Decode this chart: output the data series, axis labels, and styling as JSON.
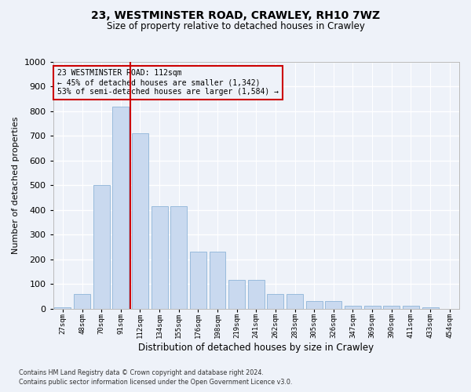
{
  "title1": "23, WESTMINSTER ROAD, CRAWLEY, RH10 7WZ",
  "title2": "Size of property relative to detached houses in Crawley",
  "xlabel": "Distribution of detached houses by size in Crawley",
  "ylabel": "Number of detached properties",
  "bar_heights": [
    5,
    60,
    500,
    820,
    710,
    415,
    415,
    230,
    230,
    115,
    115,
    60,
    60,
    32,
    32,
    10,
    10,
    10,
    10,
    5,
    0
  ],
  "bar_labels": [
    "27sqm",
    "48sqm",
    "70sqm",
    "91sqm",
    "112sqm",
    "134sqm",
    "155sqm",
    "176sqm",
    "198sqm",
    "219sqm",
    "241sqm",
    "262sqm",
    "283sqm",
    "305sqm",
    "326sqm",
    "347sqm",
    "369sqm",
    "390sqm",
    "411sqm",
    "433sqm",
    "454sqm"
  ],
  "n_bars": 21,
  "highlight_index": 4,
  "bar_color": "#c9d9ef",
  "bar_edge_color": "#8eb4d8",
  "highlight_line_color": "#cc0000",
  "annotation_box_color": "#cc0000",
  "annotation_text": "23 WESTMINSTER ROAD: 112sqm\n← 45% of detached houses are smaller (1,342)\n53% of semi-detached houses are larger (1,584) →",
  "ylim": [
    0,
    1000
  ],
  "yticks": [
    0,
    100,
    200,
    300,
    400,
    500,
    600,
    700,
    800,
    900,
    1000
  ],
  "footer1": "Contains HM Land Registry data © Crown copyright and database right 2024.",
  "footer2": "Contains public sector information licensed under the Open Government Licence v3.0.",
  "background_color": "#eef2f9",
  "grid_color": "#ffffff"
}
